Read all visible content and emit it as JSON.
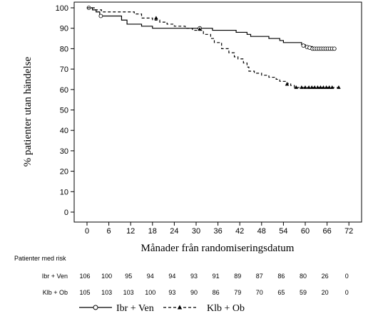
{
  "chart_data": {
    "type": "line",
    "subtype": "kaplan-meier",
    "title": "",
    "xlabel": "Månader från randomiseringsdatum",
    "ylabel": "% patienter utan händelse",
    "xlim": [
      -3,
      74
    ],
    "ylim": [
      -1,
      101
    ],
    "x_ticks": [
      0,
      6,
      12,
      18,
      24,
      30,
      36,
      42,
      48,
      54,
      60,
      66,
      72
    ],
    "y_ticks": [
      0,
      10,
      20,
      30,
      40,
      50,
      60,
      70,
      80,
      90,
      100
    ],
    "grid": false,
    "series": [
      {
        "name": "Ibr + Ven",
        "line_style": "solid",
        "censor_marker": "circle",
        "color": "#000000",
        "steps": [
          [
            0,
            100
          ],
          [
            1.5,
            99
          ],
          [
            2.5,
            98
          ],
          [
            3.5,
            96
          ],
          [
            8,
            96
          ],
          [
            9.5,
            94
          ],
          [
            11,
            92
          ],
          [
            15,
            91
          ],
          [
            18,
            90
          ],
          [
            31,
            90
          ],
          [
            34.5,
            89
          ],
          [
            41,
            88
          ],
          [
            44,
            87
          ],
          [
            45,
            86
          ],
          [
            48,
            86
          ],
          [
            50,
            85
          ],
          [
            53,
            84
          ],
          [
            54,
            83
          ],
          [
            57,
            83
          ],
          [
            59,
            82
          ],
          [
            60,
            81
          ],
          [
            62,
            80
          ],
          [
            68,
            80
          ]
        ],
        "censored": [
          [
            0.5,
            100
          ],
          [
            3.8,
            96
          ],
          [
            31,
            90
          ],
          [
            59.5,
            81.5
          ],
          [
            60.5,
            80.8
          ],
          [
            61.2,
            80.5
          ],
          [
            62,
            80
          ],
          [
            62.6,
            80
          ],
          [
            63.2,
            80
          ],
          [
            63.8,
            80
          ],
          [
            64.4,
            80
          ],
          [
            65,
            80
          ],
          [
            65.6,
            80
          ],
          [
            66.2,
            80
          ],
          [
            66.8,
            80
          ],
          [
            67.4,
            80
          ],
          [
            68,
            80
          ]
        ]
      },
      {
        "name": "Klb + Ob",
        "line_style": "dashed",
        "censor_marker": "triangle",
        "color": "#000000",
        "steps": [
          [
            0,
            100
          ],
          [
            2,
            99
          ],
          [
            4,
            98
          ],
          [
            13,
            97
          ],
          [
            15,
            95
          ],
          [
            18,
            94
          ],
          [
            20,
            93
          ],
          [
            22,
            92
          ],
          [
            24,
            91
          ],
          [
            27,
            90
          ],
          [
            29,
            89
          ],
          [
            32,
            87
          ],
          [
            34,
            85
          ],
          [
            35,
            83
          ],
          [
            37,
            80
          ],
          [
            39,
            78
          ],
          [
            40.5,
            76
          ],
          [
            41.5,
            75
          ],
          [
            43,
            73
          ],
          [
            44,
            71
          ],
          [
            44.5,
            69
          ],
          [
            46,
            68
          ],
          [
            48,
            67
          ],
          [
            50,
            66
          ],
          [
            52,
            65
          ],
          [
            53,
            64
          ],
          [
            55,
            63
          ],
          [
            56,
            62
          ],
          [
            57,
            61
          ],
          [
            69,
            61
          ]
        ],
        "censored": [
          [
            19,
            95
          ],
          [
            31,
            89.5
          ],
          [
            55,
            62.6
          ],
          [
            57.5,
            61
          ],
          [
            59,
            61
          ],
          [
            60,
            61
          ],
          [
            61,
            61
          ],
          [
            61.8,
            61
          ],
          [
            62.6,
            61
          ],
          [
            63.4,
            61
          ],
          [
            64.2,
            61
          ],
          [
            65,
            61
          ],
          [
            65.8,
            61
          ],
          [
            66.6,
            61
          ],
          [
            67.4,
            61
          ],
          [
            69.2,
            61
          ]
        ]
      }
    ]
  },
  "risk_table": {
    "title": "Patienter med risk",
    "timepoints": [
      0,
      6,
      12,
      18,
      24,
      30,
      36,
      42,
      48,
      54,
      60,
      66,
      72
    ],
    "rows": [
      {
        "label": "Ibr + Ven",
        "values": [
          "106",
          "100",
          "95",
          "94",
          "94",
          "93",
          "91",
          "89",
          "87",
          "86",
          "80",
          "26",
          "0"
        ]
      },
      {
        "label": "Klb + Ob",
        "values": [
          "105",
          "103",
          "103",
          "100",
          "93",
          "90",
          "86",
          "79",
          "70",
          "65",
          "59",
          "20",
          "0"
        ]
      }
    ]
  },
  "legend": {
    "items": [
      {
        "label": "Ibr + Ven",
        "marker": "circle",
        "line_style": "solid"
      },
      {
        "label": "Klb + Ob",
        "marker": "triangle",
        "line_style": "dashed"
      }
    ],
    "placement": "bottom-center"
  }
}
